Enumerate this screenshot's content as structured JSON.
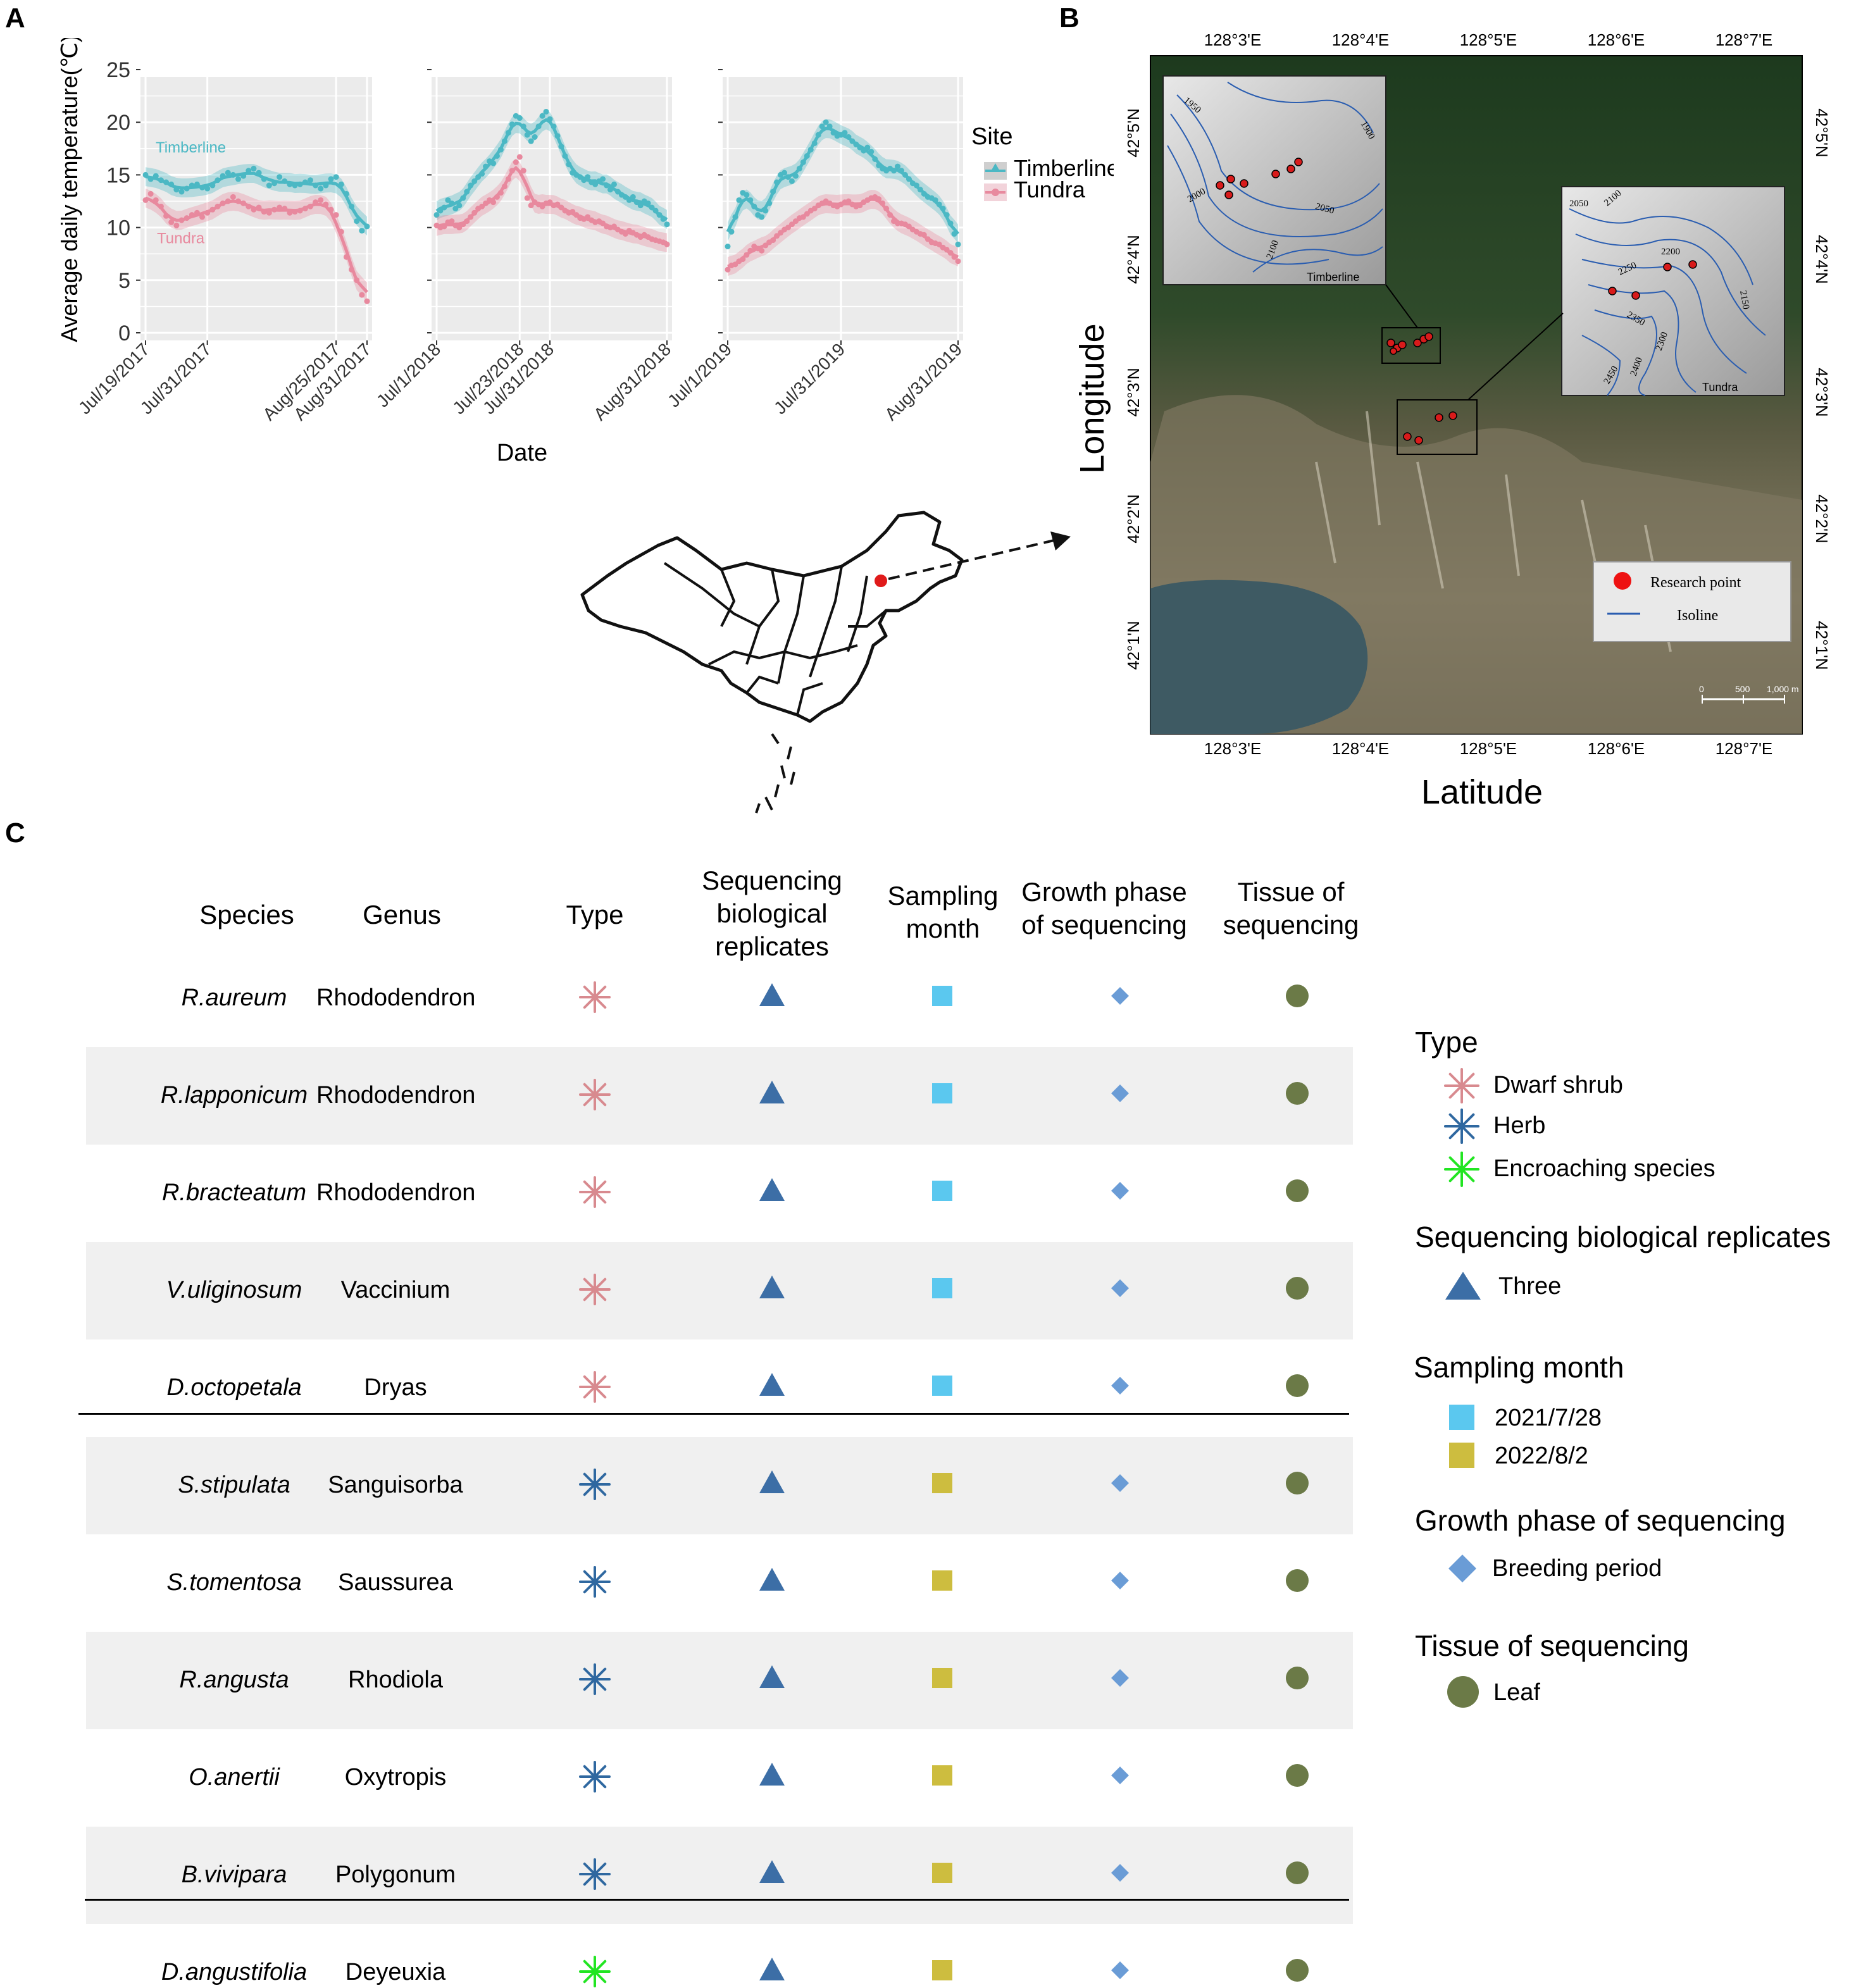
{
  "panels": {
    "a": "A",
    "b": "B",
    "c": "C"
  },
  "colors": {
    "timberline": "#4bb8c4",
    "tundra": "#e8899e",
    "panel_bg": "#ebebeb",
    "dwarf_shrub": "#d88a8f",
    "herb": "#2f68a0",
    "encroaching": "#22e522",
    "replicates": "#3c6ea6",
    "month1": "#5bc8ef",
    "month2": "#cdbd3f",
    "growth": "#6a9cd6",
    "leaf": "#6b7a47"
  },
  "chart_data": {
    "type": "line",
    "ylabel": "Average daily temperature(℃)",
    "xlabel": "Date",
    "ylim": [
      0,
      25
    ],
    "yticks": [
      "25",
      "20",
      "15",
      "10",
      "5",
      "0"
    ],
    "legend": {
      "title": "Site",
      "entries": [
        "Timberline",
        "Tundra"
      ],
      "placement": "right"
    },
    "panel_labels": {
      "timberline": "Timberline",
      "tundra": "Tundra"
    },
    "facets": [
      {
        "year": 2017,
        "xticks": [
          "Jul/19/2017",
          "Jul/31/2017",
          "Aug/25/2017",
          "Aug/31/2017"
        ],
        "xtick_days": [
          0,
          12,
          37,
          43
        ],
        "span_days": 43,
        "series": [
          {
            "name": "Timberline",
            "values": [
              15.0,
              14.6,
              14.9,
              14.5,
              14.3,
              14.1,
              13.6,
              13.4,
              13.7,
              14.0,
              14.1,
              13.8,
              13.7,
              14.0,
              14.5,
              14.9,
              15.2,
              15.0,
              14.6,
              14.9,
              15.4,
              15.6,
              15.2,
              14.6,
              14.0,
              14.2,
              14.8,
              14.4,
              14.1,
              14.0,
              14.1,
              14.3,
              14.5,
              14.0,
              13.7,
              14.0,
              14.6,
              14.8,
              14.1,
              13.2,
              12.0,
              10.6,
              9.7,
              10.1
            ]
          },
          {
            "name": "Tundra",
            "values": [
              12.6,
              13.2,
              12.6,
              12.0,
              11.1,
              10.5,
              10.2,
              10.7,
              10.9,
              11.2,
              11.4,
              11.0,
              11.4,
              11.7,
              12.0,
              12.3,
              12.5,
              12.9,
              12.5,
              12.3,
              12.0,
              11.7,
              11.9,
              11.5,
              11.4,
              11.7,
              11.9,
              11.8,
              11.4,
              11.5,
              11.6,
              11.8,
              12.0,
              12.4,
              12.6,
              12.2,
              11.7,
              11.2,
              9.6,
              7.2,
              6.0,
              5.0,
              3.6,
              3.0
            ]
          }
        ]
      },
      {
        "year": 2018,
        "xticks": [
          "Jul/1/2018",
          "Jul/23/2018",
          "Jul/31/2018",
          "Aug/31/2018"
        ],
        "xtick_days": [
          0,
          22,
          30,
          61
        ],
        "span_days": 61,
        "series": [
          {
            "name": "Timberline",
            "values": [
              11.2,
              11.6,
              11.9,
              12.6,
              12.3,
              11.8,
              12.1,
              12.8,
              13.4,
              14.0,
              14.4,
              14.8,
              15.1,
              15.8,
              16.3,
              16.1,
              16.8,
              17.4,
              18.2,
              19.0,
              19.8,
              20.6,
              20.4,
              19.6,
              18.8,
              18.2,
              18.6,
              19.6,
              20.6,
              21.0,
              20.3,
              19.6,
              18.7,
              17.7,
              16.8,
              16.0,
              15.2,
              15.0,
              14.8,
              14.5,
              14.8,
              14.3,
              14.1,
              14.4,
              14.6,
              14.0,
              13.6,
              14.1,
              13.4,
              13.1,
              12.9,
              12.6,
              12.9,
              12.4,
              12.1,
              12.5,
              12.3,
              11.9,
              11.6,
              11.2,
              10.8,
              10.3
            ]
          },
          {
            "name": "Tundra",
            "values": [
              10.2,
              10.0,
              10.1,
              10.5,
              10.6,
              10.2,
              10.0,
              10.3,
              10.6,
              11.0,
              11.4,
              11.8,
              12.0,
              12.3,
              12.6,
              12.4,
              12.9,
              13.3,
              13.9,
              14.6,
              15.4,
              16.2,
              16.7,
              15.4,
              12.8,
              12.1,
              12.4,
              12.2,
              12.0,
              12.3,
              12.4,
              12.1,
              12.2,
              11.9,
              11.6,
              11.4,
              11.5,
              11.2,
              10.9,
              10.8,
              11.0,
              10.7,
              10.5,
              10.6,
              10.4,
              10.1,
              10.0,
              10.1,
              9.8,
              9.6,
              9.4,
              9.7,
              9.5,
              9.3,
              9.1,
              9.3,
              9.1,
              8.9,
              8.8,
              8.7,
              8.6,
              8.4
            ]
          }
        ]
      },
      {
        "year": 2019,
        "xticks": [
          "Jul/1/2019",
          "Jul/31/2019",
          "Aug/31/2019"
        ],
        "xtick_days": [
          0,
          30,
          61
        ],
        "span_days": 61,
        "series": [
          {
            "name": "Timberline",
            "values": [
              8.2,
              9.6,
              11.0,
              12.6,
              13.3,
              13.1,
              12.6,
              12.0,
              11.2,
              11.0,
              11.6,
              12.3,
              13.4,
              14.3,
              15.0,
              15.2,
              14.8,
              14.4,
              14.9,
              15.6,
              16.2,
              16.8,
              17.4,
              18.0,
              18.8,
              19.6,
              20.0,
              19.6,
              19.0,
              18.7,
              18.8,
              19.0,
              18.6,
              18.2,
              17.9,
              17.6,
              17.3,
              17.6,
              17.2,
              16.5,
              15.9,
              15.6,
              15.4,
              15.6,
              15.4,
              15.8,
              15.4,
              15.0,
              14.6,
              14.2,
              14.0,
              13.6,
              13.2,
              12.9,
              12.8,
              12.6,
              12.2,
              11.8,
              11.2,
              10.4,
              9.4,
              8.4
            ]
          },
          {
            "name": "Tundra",
            "values": [
              6.0,
              6.4,
              6.5,
              6.8,
              7.0,
              7.4,
              7.8,
              8.2,
              8.0,
              7.8,
              8.3,
              8.6,
              8.8,
              9.2,
              9.5,
              9.8,
              10.0,
              10.3,
              10.6,
              10.9,
              11.0,
              11.3,
              11.6,
              11.8,
              12.1,
              12.3,
              12.5,
              12.3,
              12.1,
              12.0,
              12.2,
              12.4,
              12.5,
              12.2,
              12.0,
              12.1,
              12.4,
              12.6,
              12.8,
              12.9,
              12.7,
              12.3,
              11.8,
              11.2,
              10.6,
              10.4,
              10.4,
              10.3,
              10.1,
              9.8,
              9.6,
              9.4,
              9.3,
              8.9,
              8.6,
              8.5,
              8.4,
              8.1,
              7.9,
              7.6,
              7.2,
              6.8
            ]
          }
        ]
      }
    ]
  },
  "map": {
    "top_ticks": [
      "128°3'E",
      "128°4'E",
      "128°5'E",
      "128°6'E",
      "128°7'E"
    ],
    "bottom_ticks": [
      "128°3'E",
      "128°4'E",
      "128°5'E",
      "128°6'E",
      "128°7'E"
    ],
    "left_ticks": [
      "42°5'N",
      "42°4'N",
      "42°3'N",
      "42°2'N",
      "42°1'N"
    ],
    "right_ticks": [
      "42°5'N",
      "42°4'N",
      "42°3'N",
      "42°2'N",
      "42°1'N"
    ],
    "xlabel": "Latitude",
    "ylabel": "Longitude",
    "inset_timberline": {
      "label": "Timberline",
      "contours": [
        "1950",
        "1900",
        "2000",
        "2050",
        "2100"
      ]
    },
    "inset_tundra": {
      "label": "Tundra",
      "contours": [
        "2050",
        "2100",
        "2200",
        "2250",
        "2150",
        "2350",
        "2300",
        "2400",
        "2450"
      ]
    },
    "legend": {
      "research_point": "Research point",
      "isoline": "Isoline"
    },
    "scalebar": {
      "zero": "0",
      "mid": "500",
      "end": "1,000 m"
    }
  },
  "table": {
    "headers": {
      "species": "Species",
      "genus": "Genus",
      "type": "Type",
      "replicates": [
        "Sequencing",
        "biological",
        "replicates"
      ],
      "month": [
        "Sampling",
        "month"
      ],
      "growth": [
        "Growth phase",
        "of sequencing"
      ],
      "tissue": [
        "Tissue of",
        "sequencing"
      ]
    },
    "rows": [
      {
        "species": "R.aureum",
        "genus": "Rhododendron",
        "type": "dwarf",
        "month": "m1"
      },
      {
        "species": "R.lapponicum",
        "genus": "Rhododendron",
        "type": "dwarf",
        "month": "m1"
      },
      {
        "species": "R.bracteatum",
        "genus": "Rhododendron",
        "type": "dwarf",
        "month": "m1"
      },
      {
        "species": "V.uliginosum",
        "genus": "Vaccinium",
        "type": "dwarf",
        "month": "m1"
      },
      {
        "species": "D.octopetala",
        "genus": "Dryas",
        "type": "dwarf",
        "month": "m1"
      },
      {
        "species": "S.stipulata",
        "genus": "Sanguisorba",
        "type": "herb",
        "month": "m2"
      },
      {
        "species": "S.tomentosa",
        "genus": "Saussurea",
        "type": "herb",
        "month": "m2"
      },
      {
        "species": "R.angusta",
        "genus": "Rhodiola",
        "type": "herb",
        "month": "m2"
      },
      {
        "species": "O.anertii",
        "genus": "Oxytropis",
        "type": "herb",
        "month": "m2"
      },
      {
        "species": "B.vivipara",
        "genus": "Polygonum",
        "type": "herb",
        "month": "m2"
      },
      {
        "species": "D.angustifolia",
        "genus": "Deyeuxia",
        "type": "enc",
        "month": "m2"
      }
    ]
  },
  "legend_c": {
    "type_title": "Type",
    "type_items": [
      "Dwarf shrub",
      "Herb",
      "Encroaching species"
    ],
    "replicates_title": "Sequencing biological replicates",
    "replicates_item": "Three",
    "month_title": "Sampling month",
    "month_items": [
      "2021/7/28",
      "2022/8/2"
    ],
    "growth_title": "Growth phase of sequencing",
    "growth_item": "Breeding period",
    "tissue_title": "Tissue of sequencing",
    "tissue_item": "Leaf"
  }
}
